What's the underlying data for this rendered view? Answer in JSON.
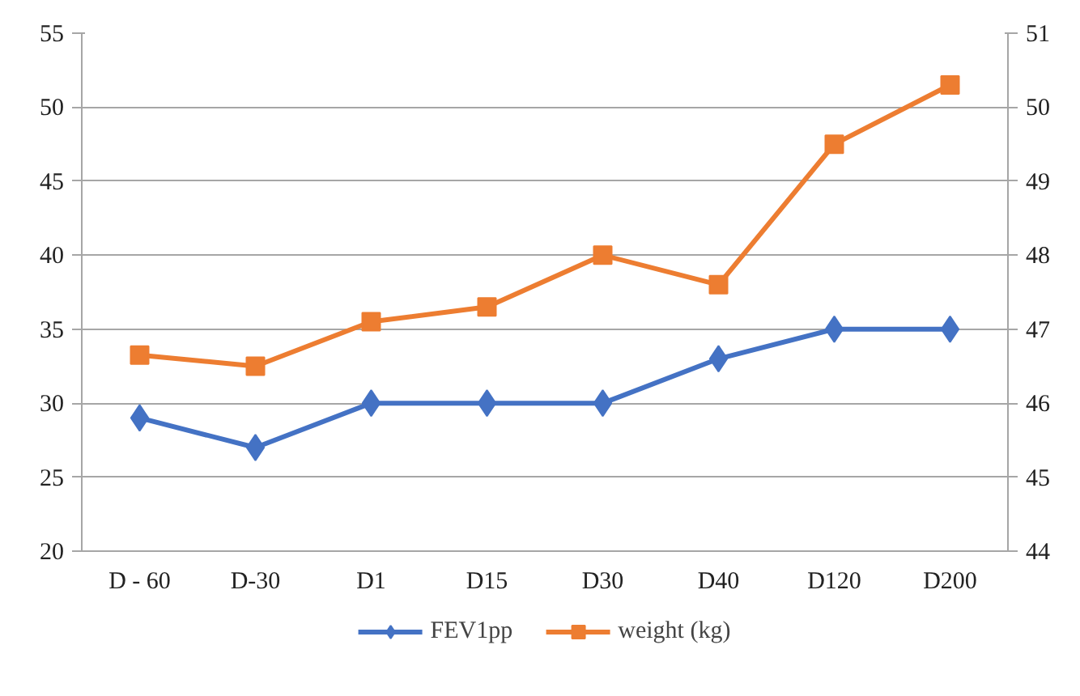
{
  "chart_data": {
    "type": "line",
    "categories": [
      "D - 60",
      "D-30",
      "D1",
      "D15",
      "D30",
      "D40",
      "D120",
      "D200"
    ],
    "series": [
      {
        "name": "FEV1pp",
        "color": "#4472c4",
        "marker": "diamond",
        "values": [
          29,
          27,
          30,
          30,
          30,
          33,
          35,
          35
        ]
      },
      {
        "name": "weight (kg)",
        "color": "#ed7d31",
        "marker": "square",
        "axis": "y2",
        "values": [
          46.65,
          46.5,
          47.1,
          47.3,
          48.0,
          47.6,
          49.5,
          50.3
        ]
      }
    ],
    "ylim": [
      20,
      55
    ],
    "yticks": [
      20,
      25,
      30,
      35,
      40,
      45,
      50,
      55
    ],
    "y2lim": [
      44,
      51
    ],
    "y2ticks": [
      44,
      45,
      46,
      47,
      48,
      49,
      50,
      51
    ],
    "grid": "y",
    "legend": "bottom"
  }
}
